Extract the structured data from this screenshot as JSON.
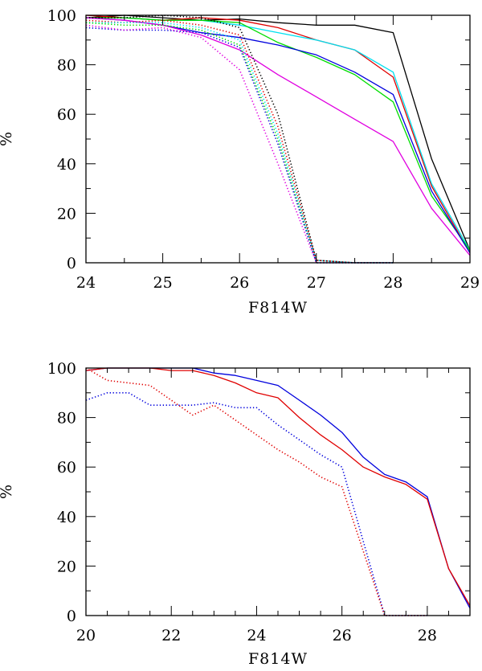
{
  "chart_data": [
    {
      "type": "line",
      "xlabel": "F814W",
      "ylabel": "%",
      "xlim": [
        24,
        29
      ],
      "ylim": [
        0,
        100
      ],
      "xticks": [
        24,
        25,
        26,
        27,
        28,
        29
      ],
      "yticks": [
        0,
        20,
        40,
        60,
        80,
        100
      ],
      "xminor": 0.5,
      "yminor": 10,
      "series": [
        {
          "color": "#000000",
          "style": "solid",
          "x": [
            24,
            24.5,
            25,
            25.5,
            26,
            26.5,
            27,
            27.5,
            28,
            28.5,
            29
          ],
          "y": [
            99,
            100,
            99,
            98,
            98.5,
            97,
            96,
            96,
            93,
            42,
            5
          ]
        },
        {
          "color": "#e00000",
          "style": "solid",
          "x": [
            24,
            24.5,
            25,
            25.5,
            26,
            26.5,
            27,
            27.5,
            28,
            28.5,
            29
          ],
          "y": [
            100,
            99,
            98,
            99,
            98,
            95,
            90,
            86,
            75,
            31,
            4
          ]
        },
        {
          "color": "#00e0f0",
          "style": "solid",
          "x": [
            24,
            24.5,
            25,
            25.5,
            26,
            26.5,
            27,
            27.5,
            28,
            28.5,
            29
          ],
          "y": [
            99,
            99,
            98,
            98,
            96,
            93,
            90,
            86,
            77,
            32,
            5
          ]
        },
        {
          "color": "#00dd00",
          "style": "solid",
          "x": [
            24,
            24.5,
            25,
            25.5,
            26,
            26.5,
            27,
            27.5,
            28,
            28.5,
            29
          ],
          "y": [
            99,
            99,
            98,
            98,
            97,
            89,
            83,
            76,
            65,
            27,
            5
          ]
        },
        {
          "color": "#0000dd",
          "style": "solid",
          "x": [
            24,
            24.5,
            25,
            25.5,
            26,
            26.5,
            27,
            27.5,
            28,
            28.5,
            29
          ],
          "y": [
            99,
            98,
            96,
            93,
            91,
            88,
            84,
            77,
            68,
            29,
            4
          ]
        },
        {
          "color": "#e000e0",
          "style": "solid",
          "x": [
            24,
            24.5,
            25,
            25.5,
            26,
            26.5,
            27,
            27.5,
            28,
            28.5,
            29
          ],
          "y": [
            99,
            98,
            96,
            92,
            86,
            76,
            67,
            58,
            49,
            22,
            3
          ]
        },
        {
          "color": "#000000",
          "style": "dotted",
          "x": [
            24,
            24.5,
            25,
            25.5,
            26,
            26.5,
            27,
            27.5,
            28
          ],
          "y": [
            99,
            99,
            100,
            99,
            95,
            60,
            1,
            0,
            0
          ]
        },
        {
          "color": "#e00000",
          "style": "dotted",
          "x": [
            24,
            24.5,
            25,
            25.5,
            26,
            26.5,
            27,
            27.5,
            28
          ],
          "y": [
            98,
            97,
            98,
            96,
            92,
            55,
            1,
            0,
            0
          ]
        },
        {
          "color": "#00e0f0",
          "style": "dotted",
          "x": [
            24,
            24.5,
            25,
            25.5,
            26,
            26.5,
            27,
            27.5,
            28
          ],
          "y": [
            97,
            97,
            97,
            95,
            90,
            52,
            1,
            0,
            0
          ]
        },
        {
          "color": "#00dd00",
          "style": "dotted",
          "x": [
            24,
            24.5,
            25,
            25.5,
            26,
            26.5,
            27,
            27.5,
            28
          ],
          "y": [
            97,
            96,
            96,
            94,
            88,
            50,
            0,
            0,
            0
          ]
        },
        {
          "color": "#0000dd",
          "style": "dotted",
          "x": [
            24,
            24.5,
            25,
            25.5,
            26,
            26.5,
            27,
            27.5,
            28
          ],
          "y": [
            95,
            94,
            94,
            93,
            87,
            48,
            0,
            0,
            0
          ]
        },
        {
          "color": "#e000e0",
          "style": "dotted",
          "x": [
            24,
            24.5,
            25,
            25.5,
            26,
            26.5,
            27,
            27.5,
            28
          ],
          "y": [
            96,
            94,
            95,
            91,
            78,
            40,
            0,
            0,
            0
          ]
        }
      ]
    },
    {
      "type": "line",
      "xlabel": "F814W",
      "ylabel": "%",
      "xlim": [
        20,
        29
      ],
      "ylim": [
        0,
        100
      ],
      "xticks": [
        20,
        22,
        24,
        26,
        28
      ],
      "yticks": [
        0,
        20,
        40,
        60,
        80,
        100
      ],
      "xminor": 0.5,
      "yminor": 10,
      "series": [
        {
          "color": "#0000dd",
          "style": "solid",
          "x": [
            20,
            20.5,
            21,
            21.5,
            22,
            22.5,
            23,
            23.5,
            24,
            24.5,
            25,
            25.5,
            26,
            26.5,
            27,
            27.5,
            28,
            28.5,
            29
          ],
          "y": [
            99,
            100,
            100,
            100,
            100,
            100,
            98,
            97,
            95,
            93,
            87,
            81,
            74,
            64,
            57,
            54,
            48,
            19,
            3
          ]
        },
        {
          "color": "#e00000",
          "style": "solid",
          "x": [
            20,
            20.5,
            21,
            21.5,
            22,
            22.5,
            23,
            23.5,
            24,
            24.5,
            25,
            25.5,
            26,
            26.5,
            27,
            27.5,
            28,
            28.5,
            29
          ],
          "y": [
            99,
            100,
            100,
            100,
            99,
            99,
            97,
            94,
            90,
            88,
            80,
            73,
            67,
            60,
            56,
            53,
            47,
            19,
            4
          ]
        },
        {
          "color": "#0000dd",
          "style": "dotted",
          "x": [
            20,
            20.5,
            21,
            21.5,
            22,
            22.5,
            23,
            23.5,
            24,
            24.5,
            25,
            25.5,
            26,
            26.5,
            27,
            27.5,
            28
          ],
          "y": [
            87,
            90,
            90,
            85,
            85,
            85,
            86,
            84,
            84,
            77,
            71,
            65,
            60,
            30,
            0,
            0,
            0
          ]
        },
        {
          "color": "#e00000",
          "style": "dotted",
          "x": [
            20,
            20.5,
            21,
            21.5,
            22,
            22.5,
            23,
            23.5,
            24,
            24.5,
            25,
            25.5,
            26,
            26.5,
            27,
            27.5,
            28
          ],
          "y": [
            100,
            95,
            94,
            93,
            87,
            81,
            85,
            79,
            73,
            67,
            62,
            56,
            52,
            26,
            0,
            0,
            0
          ]
        }
      ]
    }
  ]
}
